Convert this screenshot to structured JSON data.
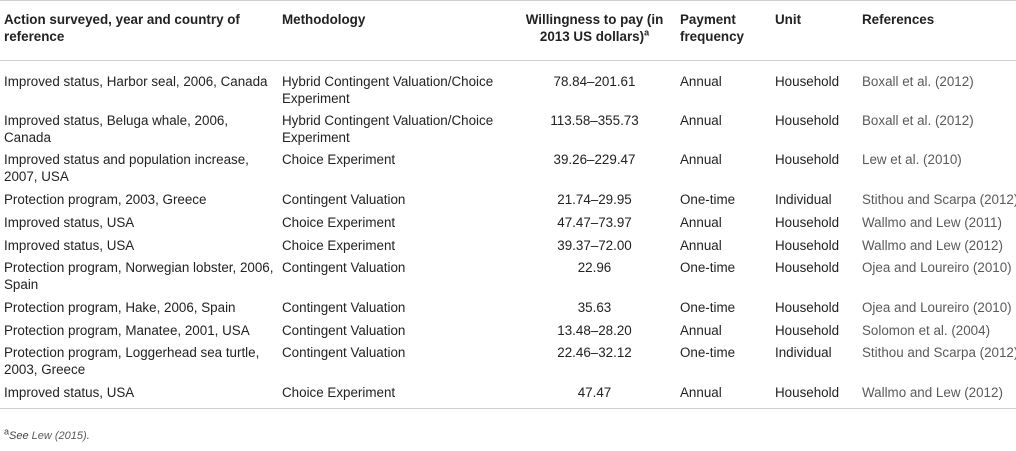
{
  "table": {
    "headers": {
      "action": "Action surveyed, year and country of reference",
      "methodology": "Methodology",
      "wtp": "Willingness to pay (in 2013 US dollars)",
      "wtp_sup": "a",
      "frequency": "Payment frequency",
      "unit": "Unit",
      "references": "References"
    },
    "rows": [
      {
        "action": "Improved status, Harbor seal, 2006, Canada",
        "methodology": "Hybrid Contingent Valuation/Choice Experiment",
        "wtp": "78.84–201.61",
        "frequency": "Annual",
        "unit": "Household",
        "reference": "Boxall et al. (2012)"
      },
      {
        "action": "Improved status, Beluga whale, 2006, Canada",
        "methodology": "Hybrid Contingent Valuation/Choice Experiment",
        "wtp": "113.58–355.73",
        "frequency": "Annual",
        "unit": "Household",
        "reference": "Boxall et al. (2012)"
      },
      {
        "action": "Improved status and population increase, 2007, USA",
        "methodology": "Choice Experiment",
        "wtp": "39.26–229.47",
        "frequency": "Annual",
        "unit": "Household",
        "reference": "Lew et al. (2010)"
      },
      {
        "action": "Protection program, 2003, Greece",
        "methodology": "Contingent Valuation",
        "wtp": "21.74–29.95",
        "frequency": "One-time",
        "unit": "Individual",
        "reference": "Stithou and Scarpa (2012)"
      },
      {
        "action": "Improved status, USA",
        "methodology": "Choice Experiment",
        "wtp": "47.47–73.97",
        "frequency": "Annual",
        "unit": "Household",
        "reference": "Wallmo and Lew (2011)"
      },
      {
        "action": "Improved status, USA",
        "methodology": "Choice Experiment",
        "wtp": "39.37–72.00",
        "frequency": "Annual",
        "unit": "Household",
        "reference": "Wallmo and Lew (2012)"
      },
      {
        "action": "Protection program, Norwegian lobster, 2006, Spain",
        "methodology": "Contingent Valuation",
        "wtp": "22.96",
        "frequency": "One-time",
        "unit": "Household",
        "reference": "Ojea and Loureiro (2010)"
      },
      {
        "action": "Protection program, Hake, 2006, Spain",
        "methodology": "Contingent Valuation",
        "wtp": "35.63",
        "frequency": "One-time",
        "unit": "Household",
        "reference": "Ojea and Loureiro (2010)"
      },
      {
        "action": "Protection program, Manatee, 2001, USA",
        "methodology": "Contingent Valuation",
        "wtp": "13.48–28.20",
        "frequency": "Annual",
        "unit": "Household",
        "reference": "Solomon et al. (2004)"
      },
      {
        "action": "Protection program, Loggerhead sea turtle, 2003, Greece",
        "methodology": "Contingent Valuation",
        "wtp": "22.46–32.12",
        "frequency": "One-time",
        "unit": "Individual",
        "reference": "Stithou and Scarpa (2012)"
      },
      {
        "action": "Improved status, USA",
        "methodology": "Choice Experiment",
        "wtp": "47.47",
        "frequency": "Annual",
        "unit": "Household",
        "reference": "Wallmo and Lew (2012)"
      }
    ]
  },
  "footnote": {
    "marker": "a",
    "text": "See ",
    "link": "Lew (2015)",
    "end": "."
  }
}
